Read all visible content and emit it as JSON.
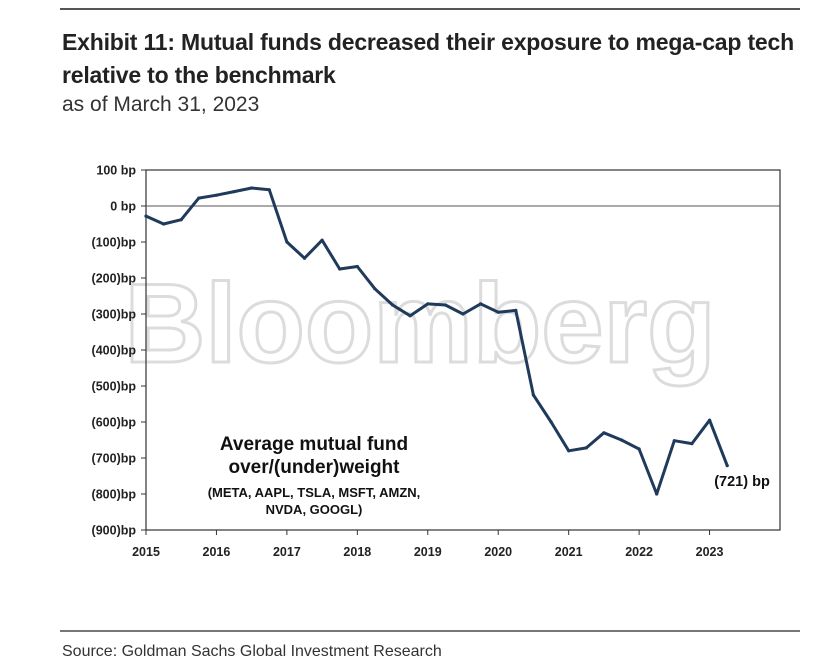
{
  "header": {
    "title": "Exhibit 11: Mutual funds decreased their exposure to mega-cap tech relative to the benchmark",
    "subtitle": "as of March 31, 2023"
  },
  "footer": {
    "source": "Source: Goldman Sachs Global Investment Research"
  },
  "watermark": "Bloomberg",
  "chart_data": {
    "type": "line",
    "title": "Exhibit 11: Mutual funds decreased their exposure to mega-cap tech relative to the benchmark",
    "subtitle": "as of March 31, 2023",
    "xlabel": "",
    "ylabel": "",
    "xlim": [
      2015,
      2024
    ],
    "ylim": [
      -900,
      100
    ],
    "x_ticks": [
      2015,
      2016,
      2017,
      2018,
      2019,
      2020,
      2021,
      2022,
      2023
    ],
    "x_tick_labels": [
      "2015",
      "2016",
      "2017",
      "2018",
      "2019",
      "2020",
      "2021",
      "2022",
      "2023"
    ],
    "y_ticks": [
      100,
      0,
      -100,
      -200,
      -300,
      -400,
      -500,
      -600,
      -700,
      -800,
      -900
    ],
    "y_tick_labels": [
      "100 bp",
      "0 bp",
      "(100)bp",
      "(200)bp",
      "(300)bp",
      "(400)bp",
      "(500)bp",
      "(600)bp",
      "(700)bp",
      "(800)bp",
      "(900)bp"
    ],
    "grid": false,
    "zero_line": true,
    "series_color": "#1f3a5a",
    "series": [
      {
        "name": "",
        "x": [
          2015.0,
          2015.25,
          2015.5,
          2015.75,
          2016.0,
          2016.25,
          2016.5,
          2016.75,
          2017.0,
          2017.25,
          2017.5,
          2017.75,
          2018.0,
          2018.25,
          2018.5,
          2018.75,
          2019.0,
          2019.25,
          2019.5,
          2019.75,
          2020.0,
          2020.25,
          2020.5,
          2020.75,
          2021.0,
          2021.25,
          2021.5,
          2021.75,
          2022.0,
          2022.25,
          2022.5,
          2022.75,
          2023.0,
          2023.25
        ],
        "values": [
          -28,
          -50,
          -38,
          22,
          30,
          40,
          50,
          45,
          -100,
          -145,
          -95,
          -175,
          -168,
          -230,
          -275,
          -305,
          -272,
          -275,
          -300,
          -272,
          -295,
          -290,
          -525,
          -600,
          -680,
          -672,
          -630,
          -650,
          -675,
          -800,
          -652,
          -660,
          -595,
          -721
        ]
      }
    ],
    "annotations": {
      "label_lines": [
        "Average mutual fund",
        "over/(under)weight"
      ],
      "tickers_lines": [
        "(META, AAPL, TSLA, MSFT, AMZN,",
        "NVDA, GOOGL)"
      ],
      "end_value_label": "(721) bp"
    }
  }
}
